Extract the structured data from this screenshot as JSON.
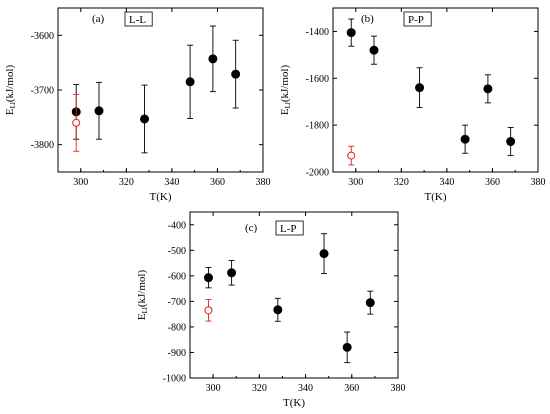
{
  "chart_data": [
    {
      "type": "scatter",
      "panel_label": "(a)",
      "boxed_label": "L-L",
      "xlabel": "T(K)",
      "ylabel": {
        "main": "E",
        "sub": "Ll",
        "unit": "(kJ/mol)"
      },
      "xlim": [
        290,
        380
      ],
      "ylim": [
        -3850,
        -3550
      ],
      "xticks": [
        300,
        320,
        340,
        360,
        380
      ],
      "yticks": [
        -3800,
        -3700,
        -3600
      ],
      "series": [
        {
          "marker": "filled-circle",
          "color": "#000000",
          "x": [
            298,
            308,
            328,
            348,
            358,
            368
          ],
          "y": [
            -3740,
            -3738,
            -3753,
            -3685,
            -3643,
            -3671
          ],
          "yerr": [
            50,
            52,
            62,
            67,
            60,
            62
          ]
        },
        {
          "marker": "open-circle",
          "color": "#e0201b",
          "x": [
            298
          ],
          "y": [
            -3760
          ],
          "yerr": [
            52
          ]
        }
      ]
    },
    {
      "type": "scatter",
      "panel_label": "(b)",
      "boxed_label": "P-P",
      "xlabel": "T(K)",
      "ylabel": {
        "main": "E",
        "sub": "Ll",
        "unit": "(kJ/mol)"
      },
      "xlim": [
        290,
        380
      ],
      "ylim": [
        -2000,
        -1300
      ],
      "xticks": [
        300,
        320,
        340,
        360,
        380
      ],
      "yticks": [
        -2000,
        -1800,
        -1600,
        -1400
      ],
      "series": [
        {
          "marker": "filled-circle",
          "color": "#000000",
          "x": [
            298,
            308,
            328,
            348,
            358,
            368
          ],
          "y": [
            -1405,
            -1480,
            -1640,
            -1860,
            -1645,
            -1870
          ],
          "yerr": [
            58,
            60,
            85,
            60,
            60,
            60
          ]
        },
        {
          "marker": "open-circle",
          "color": "#e0201b",
          "x": [
            298
          ],
          "y": [
            -1930
          ],
          "yerr": [
            40
          ]
        }
      ]
    },
    {
      "type": "scatter",
      "panel_label": "(c)",
      "boxed_label": "L-P",
      "xlabel": "T(K)",
      "ylabel": {
        "main": "E",
        "sub": "Ll",
        "unit": "(kJ/mol)"
      },
      "xlim": [
        290,
        380
      ],
      "ylim": [
        -1000,
        -350
      ],
      "xticks": [
        300,
        320,
        340,
        360,
        380
      ],
      "yticks": [
        -1000,
        -900,
        -800,
        -700,
        -600,
        -500,
        -400
      ],
      "series": [
        {
          "marker": "filled-circle",
          "color": "#000000",
          "x": [
            298,
            308,
            328,
            348,
            358,
            368
          ],
          "y": [
            -607,
            -588,
            -733,
            -513,
            -880,
            -705
          ],
          "yerr": [
            40,
            48,
            45,
            78,
            60,
            45
          ]
        },
        {
          "marker": "open-circle",
          "color": "#e0201b",
          "x": [
            298
          ],
          "y": [
            -735
          ],
          "yerr": [
            42
          ]
        }
      ]
    }
  ]
}
